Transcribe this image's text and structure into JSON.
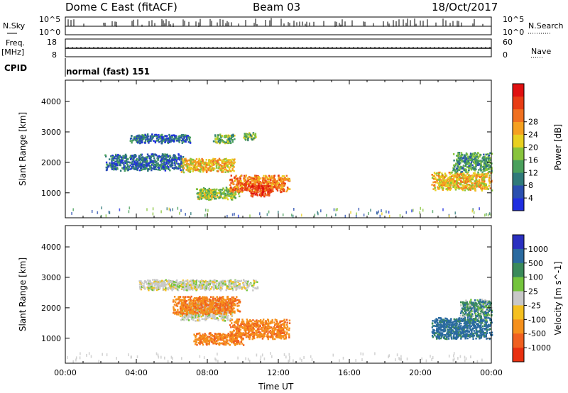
{
  "header": {
    "station": "Dome C East (fitACF)",
    "beam": "Beam 03",
    "date": "18/Oct/2017"
  },
  "side_labels": {
    "nsky": "N.Sky",
    "nsearch": "N.Search",
    "freq": "Freq.",
    "freq_unit": "[MHz]",
    "nave": "Nave",
    "cpid": "CPID"
  },
  "top_ticks": {
    "nsky_left": [
      "10^5",
      "10^0"
    ],
    "nsky_right": [
      "10^5",
      "10^0"
    ],
    "freq_left": [
      "18",
      "8"
    ],
    "freq_right": [
      "60",
      "0"
    ]
  },
  "cpid_value": "normal (fast) 151",
  "chart_data": [
    {
      "type": "heatmap",
      "panel": "power",
      "ylabel": "Slant Range [km]",
      "yticks": [
        1000,
        2000,
        3000,
        4000
      ],
      "ylim": [
        180,
        4700
      ],
      "xlabel": "Time UT",
      "xticks": [
        "00:00",
        "04:00",
        "08:00",
        "12:00",
        "16:00",
        "20:00",
        "00:00"
      ],
      "xlim_hours": [
        0,
        24
      ],
      "colorbar": {
        "label": "Power [dB]",
        "ticks": [
          "4",
          "8",
          "12",
          "16",
          "20",
          "24",
          "28"
        ],
        "colors": [
          "#1f2ee0",
          "#2a4fb0",
          "#2f7a7a",
          "#4aa05c",
          "#88c43c",
          "#e8d020",
          "#f5a020",
          "#f07020",
          "#e83c14",
          "#e01010"
        ]
      },
      "echo_regions": [
        {
          "t_start": 2.2,
          "t_end": 6.6,
          "r_min": 1750,
          "r_max": 2300,
          "value": 8
        },
        {
          "t_start": 3.6,
          "t_end": 7.0,
          "r_min": 2650,
          "r_max": 2950,
          "value": 8
        },
        {
          "t_start": 6.5,
          "t_end": 9.5,
          "r_min": 1700,
          "r_max": 2150,
          "value": 20
        },
        {
          "t_start": 8.3,
          "t_end": 9.5,
          "r_min": 2650,
          "r_max": 2950,
          "value": 14
        },
        {
          "t_start": 10.0,
          "t_end": 10.7,
          "r_min": 2750,
          "r_max": 3000,
          "value": 14
        },
        {
          "t_start": 7.3,
          "t_end": 9.8,
          "r_min": 800,
          "r_max": 1200,
          "value": 16
        },
        {
          "t_start": 9.2,
          "t_end": 12.6,
          "r_min": 1050,
          "r_max": 1600,
          "value": 24
        },
        {
          "t_start": 10.4,
          "t_end": 11.6,
          "r_min": 900,
          "r_max": 1300,
          "value": 28
        },
        {
          "t_start": 20.6,
          "t_end": 24.0,
          "r_min": 1100,
          "r_max": 1700,
          "value": 20
        },
        {
          "t_start": 21.8,
          "t_end": 24.0,
          "r_min": 1700,
          "r_max": 2350,
          "value": 12
        }
      ]
    },
    {
      "type": "heatmap",
      "panel": "velocity",
      "ylabel": "Slant Range [km]",
      "yticks": [
        1000,
        2000,
        3000,
        4000
      ],
      "ylim": [
        180,
        4700
      ],
      "xlabel": "Time UT",
      "xticks": [
        "00:00",
        "04:00",
        "08:00",
        "12:00",
        "16:00",
        "20:00",
        "00:00"
      ],
      "xlim_hours": [
        0,
        24
      ],
      "colorbar": {
        "label": "Velocity [m s^-1]",
        "ticks": [
          "1000",
          "500",
          "100",
          "25",
          "-25",
          "-100",
          "-500",
          "-1000"
        ],
        "colors": [
          "#2a30c0",
          "#2a6aa0",
          "#3a8a5a",
          "#74c43c",
          "#c8c8c8",
          "#f5c020",
          "#f5901c",
          "#f06020",
          "#e83010"
        ]
      },
      "echo_regions": [
        {
          "t_start": 4.1,
          "t_end": 10.8,
          "r_min": 2600,
          "r_max": 2950,
          "value": 0
        },
        {
          "t_start": 6.4,
          "t_end": 9.4,
          "r_min": 1600,
          "r_max": 2250,
          "value": 0
        },
        {
          "t_start": 6.0,
          "t_end": 9.8,
          "r_min": 1800,
          "r_max": 2400,
          "value": -300
        },
        {
          "t_start": 7.2,
          "t_end": 10.0,
          "r_min": 800,
          "r_max": 1200,
          "value": -300
        },
        {
          "t_start": 9.2,
          "t_end": 12.6,
          "r_min": 1000,
          "r_max": 1650,
          "value": -300
        },
        {
          "t_start": 20.6,
          "t_end": 24.0,
          "r_min": 1000,
          "r_max": 1700,
          "value": 300
        },
        {
          "t_start": 22.2,
          "t_end": 24.0,
          "r_min": 1600,
          "r_max": 2300,
          "value": 150
        }
      ]
    }
  ]
}
